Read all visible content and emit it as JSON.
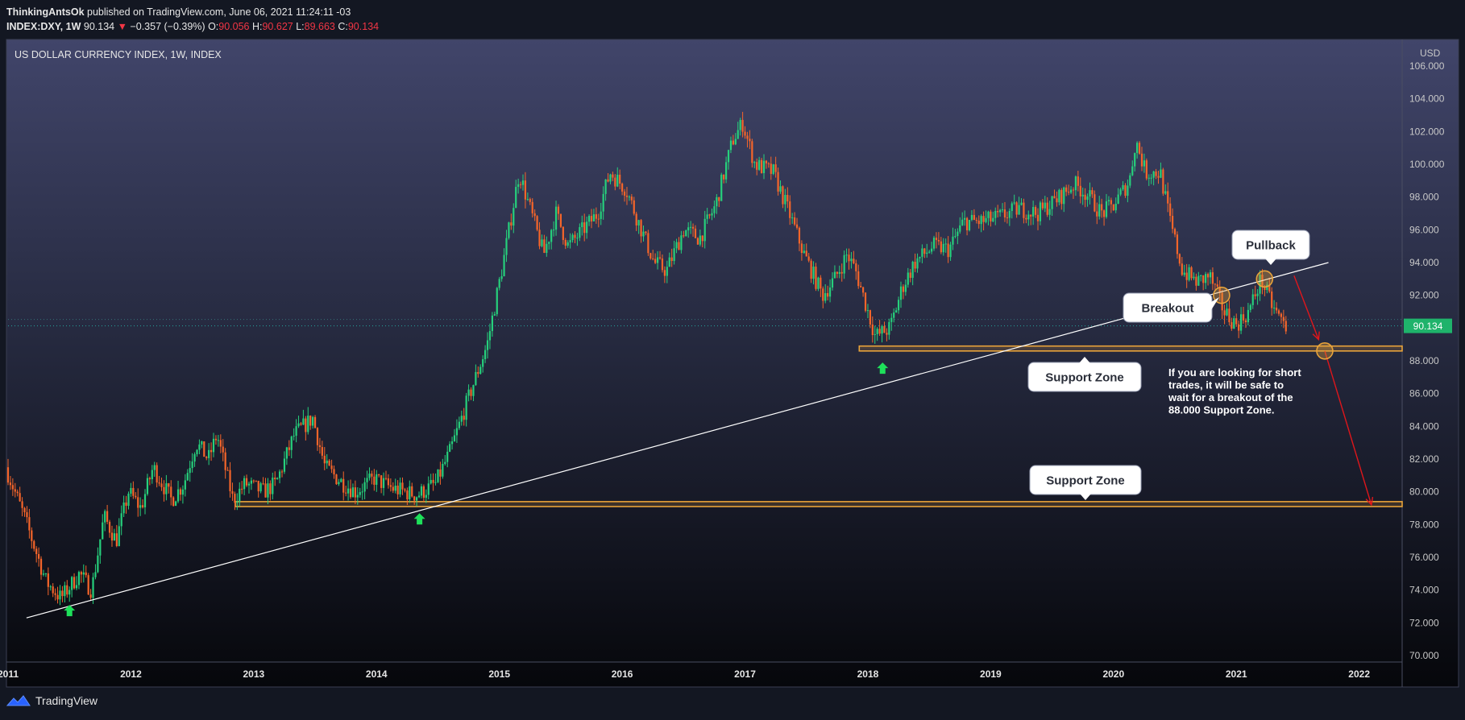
{
  "header": {
    "author": "ThinkingAntsOk",
    "published": "published on TradingView.com, June 06, 2021 11:24:11 -03",
    "symbol": "INDEX:DXY, 1W",
    "last": "90.134",
    "change": "−0.357 (−0.39%)",
    "o_label": "O:",
    "o": "90.056",
    "h_label": "H:",
    "h": "90.627",
    "l_label": "L:",
    "l": "89.663",
    "c_label": "C:",
    "c": "90.134"
  },
  "footer": {
    "brand": "TradingView",
    "logo_icon": "tradingview-logo-icon"
  },
  "colors": {
    "up": "#26d07c",
    "down": "#f5652a",
    "support": "#e8a33a",
    "trend": "#ffffff",
    "arrow": "#e0161b",
    "green_arrow": "#1ee05a"
  },
  "chart_data": {
    "type": "candlestick",
    "title": "US DOLLAR CURRENCY INDEX, 1W, INDEX",
    "currency_label": "USD",
    "y_ticks": [
      "106.000",
      "104.000",
      "102.000",
      "100.000",
      "98.000",
      "96.000",
      "94.000",
      "92.000",
      "90.000",
      "88.000",
      "86.000",
      "84.000",
      "82.000",
      "80.000",
      "78.000",
      "76.000",
      "74.000",
      "72.000",
      "70.000"
    ],
    "y_range": [
      70,
      106
    ],
    "x_ticks": [
      "2011",
      "2012",
      "2013",
      "2014",
      "2015",
      "2016",
      "2017",
      "2018",
      "2019",
      "2020",
      "2021",
      "2022"
    ],
    "x_range": [
      2011.0,
      2022.35
    ],
    "last_price": "90.134",
    "price_path": [
      [
        2011.0,
        81.5
      ],
      [
        2011.15,
        78.5
      ],
      [
        2011.33,
        74.5
      ],
      [
        2011.45,
        73.5
      ],
      [
        2011.6,
        75.0
      ],
      [
        2011.7,
        74.0
      ],
      [
        2011.8,
        78.5
      ],
      [
        2011.9,
        77.0
      ],
      [
        2012.0,
        80.0
      ],
      [
        2012.1,
        79.0
      ],
      [
        2012.2,
        81.5
      ],
      [
        2012.35,
        79.5
      ],
      [
        2012.45,
        80.5
      ],
      [
        2012.55,
        83.0
      ],
      [
        2012.65,
        82.0
      ],
      [
        2012.72,
        83.5
      ],
      [
        2012.85,
        79.5
      ],
      [
        2012.95,
        80.5
      ],
      [
        2013.1,
        80.0
      ],
      [
        2013.2,
        80.5
      ],
      [
        2013.35,
        83.5
      ],
      [
        2013.5,
        84.5
      ],
      [
        2013.6,
        81.5
      ],
      [
        2013.75,
        80.5
      ],
      [
        2013.85,
        80.0
      ],
      [
        2014.0,
        80.8
      ],
      [
        2014.15,
        80.2
      ],
      [
        2014.35,
        79.8
      ],
      [
        2014.5,
        80.5
      ],
      [
        2014.62,
        82.5
      ],
      [
        2014.78,
        86.0
      ],
      [
        2014.92,
        89.0
      ],
      [
        2015.05,
        94.0
      ],
      [
        2015.18,
        99.5
      ],
      [
        2015.28,
        97.0
      ],
      [
        2015.38,
        94.5
      ],
      [
        2015.48,
        97.0
      ],
      [
        2015.58,
        95.0
      ],
      [
        2015.7,
        96.0
      ],
      [
        2015.82,
        97.0
      ],
      [
        2015.92,
        99.5
      ],
      [
        2016.05,
        98.5
      ],
      [
        2016.15,
        96.5
      ],
      [
        2016.28,
        94.0
      ],
      [
        2016.38,
        93.5
      ],
      [
        2016.52,
        96.0
      ],
      [
        2016.65,
        95.5
      ],
      [
        2016.78,
        97.5
      ],
      [
        2016.92,
        101.5
      ],
      [
        2017.0,
        102.5
      ],
      [
        2017.1,
        100.0
      ],
      [
        2017.25,
        99.5
      ],
      [
        2017.38,
        97.0
      ],
      [
        2017.5,
        94.5
      ],
      [
        2017.65,
        92.0
      ],
      [
        2017.75,
        93.0
      ],
      [
        2017.85,
        94.5
      ],
      [
        2017.92,
        93.5
      ],
      [
        2018.0,
        91.5
      ],
      [
        2018.08,
        89.5
      ],
      [
        2018.2,
        90.0
      ],
      [
        2018.3,
        92.5
      ],
      [
        2018.4,
        94.0
      ],
      [
        2018.55,
        95.0
      ],
      [
        2018.68,
        94.8
      ],
      [
        2018.8,
        96.5
      ],
      [
        2018.95,
        96.5
      ],
      [
        2019.1,
        96.8
      ],
      [
        2019.25,
        97.3
      ],
      [
        2019.4,
        97.0
      ],
      [
        2019.55,
        97.8
      ],
      [
        2019.7,
        98.8
      ],
      [
        2019.8,
        98.2
      ],
      [
        2019.92,
        97.0
      ],
      [
        2020.02,
        97.5
      ],
      [
        2020.15,
        99.0
      ],
      [
        2020.2,
        101.5
      ],
      [
        2020.28,
        99.5
      ],
      [
        2020.4,
        99.5
      ],
      [
        2020.48,
        96.5
      ],
      [
        2020.58,
        93.5
      ],
      [
        2020.7,
        92.8
      ],
      [
        2020.8,
        93.2
      ],
      [
        2020.92,
        91.0
      ],
      [
        2021.02,
        90.2
      ],
      [
        2021.12,
        91.0
      ],
      [
        2021.22,
        93.0
      ],
      [
        2021.32,
        91.2
      ],
      [
        2021.42,
        90.1
      ]
    ],
    "support_zones": [
      {
        "label": "Support Zone",
        "low": 88.6,
        "high": 88.9,
        "x_start": 2017.93
      },
      {
        "label": "Support Zone",
        "low": 79.1,
        "high": 79.4,
        "x_start": 2012.85
      }
    ],
    "trendline": {
      "from": [
        2011.15,
        72.3
      ],
      "to": [
        2021.75,
        94.0
      ]
    },
    "annotations": {
      "pullback": "Pullback",
      "breakout": "Breakout",
      "note": [
        "If you are looking for short",
        "trades, it will be safe to",
        "wait for a breakout of the",
        "88.000 Support Zone."
      ]
    },
    "circle_markers": [
      [
        2020.88,
        92.0
      ],
      [
        2021.23,
        93.0
      ],
      [
        2021.72,
        88.6
      ]
    ],
    "green_arrows": [
      [
        2011.5,
        72.8
      ],
      [
        2014.35,
        78.4
      ],
      [
        2018.12,
        87.6
      ]
    ],
    "projection": [
      [
        2021.47,
        93.2
      ],
      [
        2021.67,
        89.3
      ],
      [
        2021.72,
        88.6
      ],
      [
        2022.1,
        79.2
      ]
    ]
  }
}
